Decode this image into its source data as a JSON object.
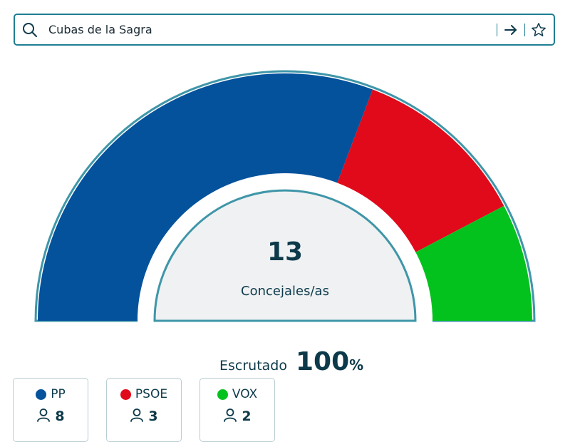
{
  "search": {
    "value": "Cubas de la Sagra"
  },
  "center": {
    "total": "13",
    "label": "Concejales/as"
  },
  "scrutiny": {
    "label": "Escrutado",
    "value": "100",
    "unit": "%"
  },
  "parties": [
    {
      "name": "PP",
      "seats": "8",
      "color": "#04529c"
    },
    {
      "name": "PSOE",
      "seats": "3",
      "color": "#e00a1a"
    },
    {
      "name": "VOX",
      "seats": "2",
      "color": "#04c21e"
    }
  ],
  "chart_data": {
    "type": "pie",
    "variant": "semicircle",
    "categories": [
      "PP",
      "PSOE",
      "VOX"
    ],
    "values": [
      8,
      3,
      2
    ],
    "colors": [
      "#04529c",
      "#e00a1a",
      "#04c21e"
    ]
  },
  "colors": {
    "accent": "#1f7f93",
    "ring": "#3f96a8",
    "inner_fill": "#eff1f3",
    "text": "#0d3a4a"
  }
}
